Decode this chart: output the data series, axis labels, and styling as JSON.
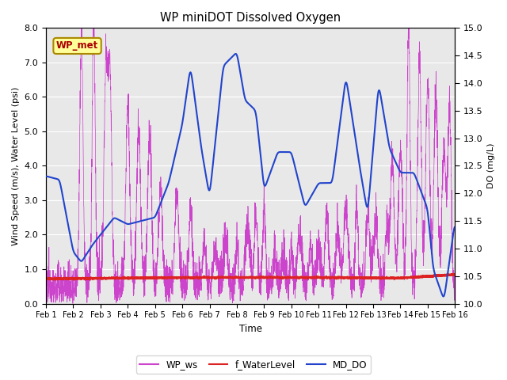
{
  "title": "WP miniDOT Dissolved Oxygen",
  "xlabel": "Time",
  "ylabel_left": "Wind Speed (m/s), Water Level (psi)",
  "ylabel_right": "DO (mg/L)",
  "xlim": [
    0,
    15
  ],
  "ylim_left": [
    0.0,
    8.0
  ],
  "ylim_right": [
    10.0,
    15.0
  ],
  "yticks_left": [
    0.0,
    1.0,
    2.0,
    3.0,
    4.0,
    5.0,
    6.0,
    7.0,
    8.0
  ],
  "yticks_right": [
    10.0,
    10.5,
    11.0,
    11.5,
    12.0,
    12.5,
    13.0,
    13.5,
    14.0,
    14.5,
    15.0
  ],
  "xtick_labels": [
    "Feb 1",
    "Feb 2",
    "Feb 3",
    "Feb 4",
    "Feb 5",
    "Feb 6",
    "Feb 7",
    "Feb 8",
    "Feb 9",
    "Feb 10",
    "Feb 11",
    "Feb 12",
    "Feb 13",
    "Feb 14",
    "Feb 15",
    "Feb 16"
  ],
  "color_ws": "#CC44CC",
  "color_wl": "#DD2222",
  "color_do": "#2244CC",
  "legend_labels": [
    "WP_ws",
    "f_WaterLevel",
    "MD_DO"
  ],
  "annotation_text": "WP_met",
  "annotation_box_facecolor": "#FFFF99",
  "annotation_box_edgecolor": "#AA8800",
  "annotation_text_color": "#AA0000",
  "background_color": "#E8E8E8",
  "grid_color": "#FFFFFF",
  "fig_facecolor": "#FFFFFF"
}
